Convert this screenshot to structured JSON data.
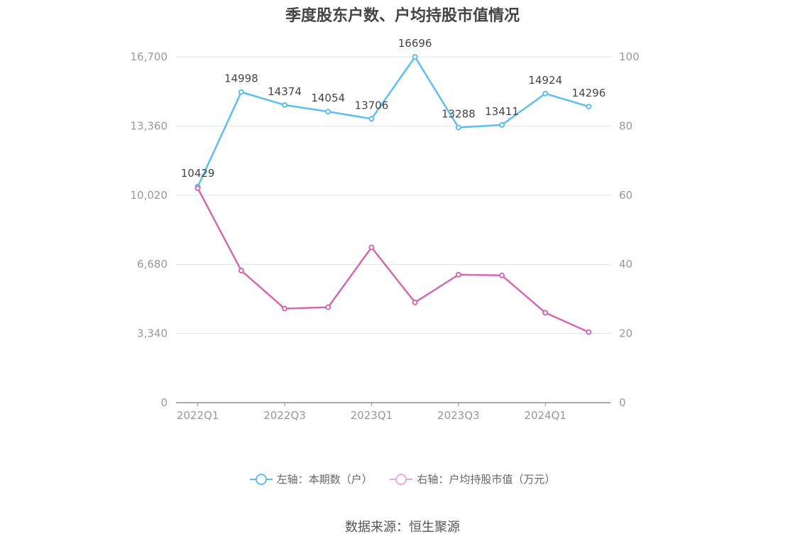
{
  "title": "季度股东户数、户均持股市值情况",
  "source": "数据来源：恒生聚源",
  "chart_data": {
    "type": "line",
    "categories": [
      "2022Q1",
      "2022Q2",
      "2022Q3",
      "2022Q4",
      "2023Q1",
      "2023Q2",
      "2023Q3",
      "2023Q4",
      "2024Q1",
      "2024Q2"
    ],
    "x_tick_labels": [
      "2022Q1",
      "2022Q3",
      "2023Q1",
      "2023Q3",
      "2024Q1"
    ],
    "left_axis": {
      "ticks": [
        "0",
        "3,340",
        "6,680",
        "10,020",
        "13,360",
        "16,700"
      ],
      "ylim": [
        0,
        16700
      ]
    },
    "right_axis": {
      "ticks": [
        "0",
        "20",
        "40",
        "60",
        "80",
        "100"
      ],
      "ylim": [
        0,
        100
      ]
    },
    "grid": true,
    "legend_position": "bottom",
    "series": [
      {
        "name": "左轴：本期数（户）",
        "axis": "left",
        "color": "#5bc0f0",
        "values": [
          10429,
          14998,
          14374,
          14054,
          13706,
          16696,
          13288,
          13411,
          14924,
          14296
        ],
        "labels": [
          "10429",
          "14998",
          "14374",
          "14054",
          "13706",
          "16696",
          "13288",
          "13411",
          "14924",
          "14296"
        ]
      },
      {
        "name": "右轴：户均持股市值（万元）",
        "axis": "right",
        "color": "#d46aae",
        "legend_color": "#f0a8cf",
        "values": [
          62.0,
          38.2,
          27.2,
          27.6,
          44.9,
          29.0,
          37.0,
          36.8,
          26.0,
          20.4
        ]
      }
    ]
  }
}
